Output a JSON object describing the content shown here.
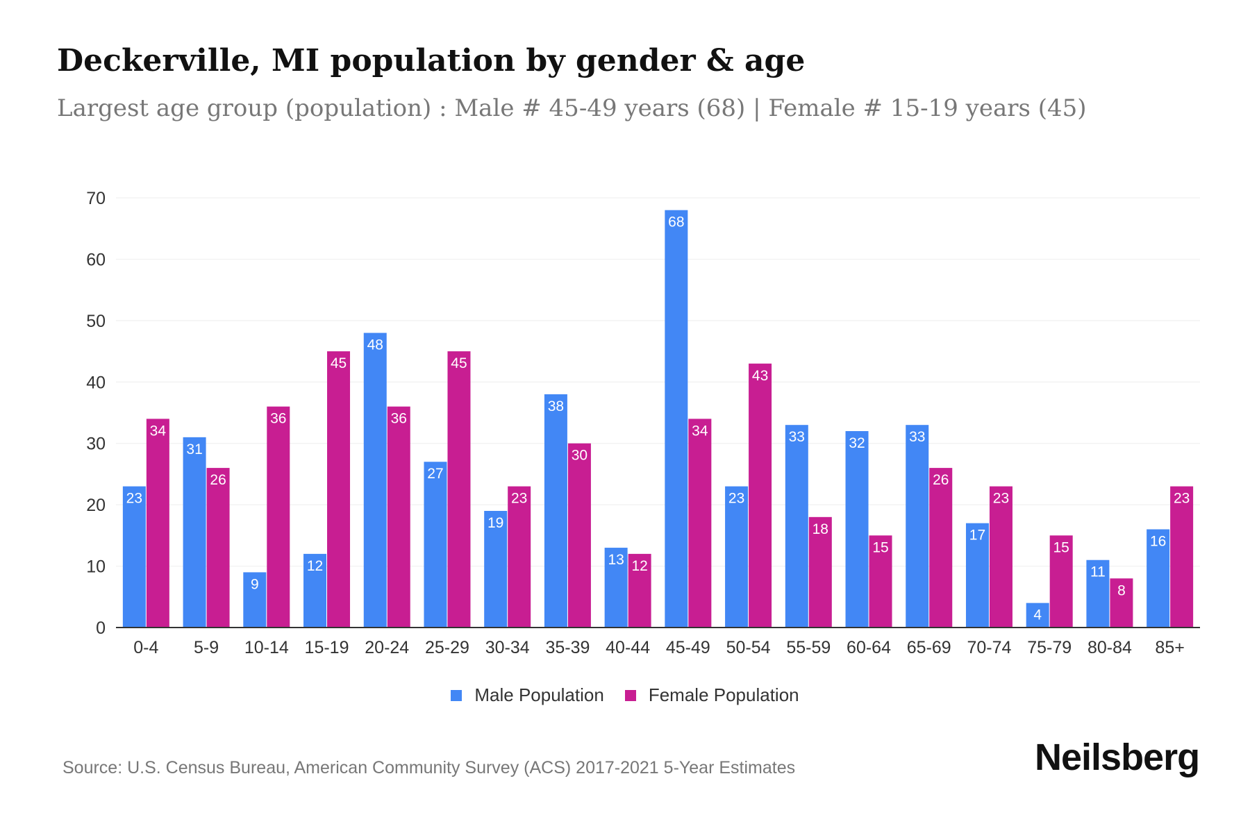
{
  "title": "Deckerville, MI population by gender & age",
  "subtitle": "Largest age group (population) : Male # 45-49 years (68) | Female # 15-19 years (45)",
  "source": "Source: U.S. Census Bureau, American Community Survey (ACS) 2017-2021 5-Year Estimates",
  "logo": "Neilsberg",
  "chart_data": {
    "type": "bar",
    "categories": [
      "0-4",
      "5-9",
      "10-14",
      "15-19",
      "20-24",
      "25-29",
      "30-34",
      "35-39",
      "40-44",
      "45-49",
      "50-54",
      "55-59",
      "60-64",
      "65-69",
      "70-74",
      "75-79",
      "80-84",
      "85+"
    ],
    "series": [
      {
        "name": "Male Population",
        "color": "#4287f5",
        "values": [
          23,
          31,
          9,
          12,
          48,
          27,
          19,
          38,
          13,
          68,
          23,
          33,
          32,
          33,
          17,
          4,
          11,
          16
        ]
      },
      {
        "name": "Female Population",
        "color": "#c81e92",
        "values": [
          34,
          26,
          36,
          45,
          36,
          45,
          23,
          30,
          12,
          34,
          43,
          18,
          15,
          26,
          23,
          15,
          8,
          23
        ]
      }
    ],
    "ylim": [
      0,
      70
    ],
    "yticks": [
      0,
      10,
      20,
      30,
      40,
      50,
      60,
      70
    ],
    "grid": true,
    "legend": "bottom-center",
    "data_labels": true
  }
}
